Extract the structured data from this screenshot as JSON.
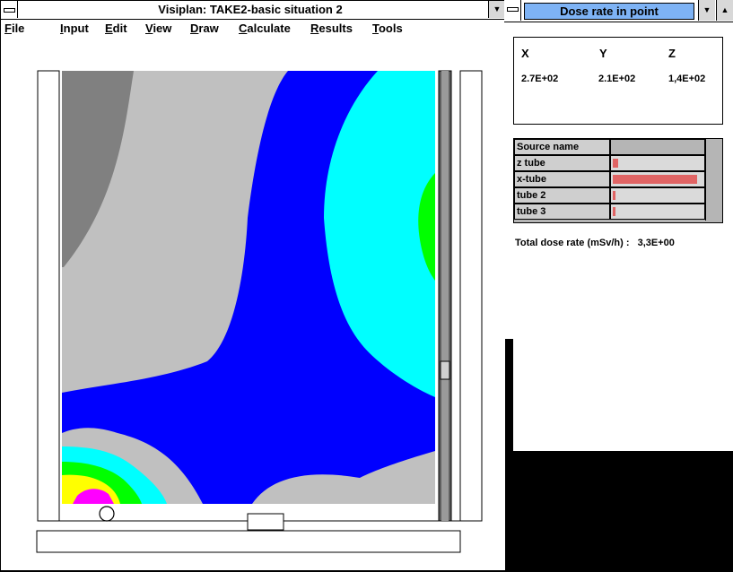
{
  "main_window": {
    "title": "Visiplan: TAKE2-basic situation 2",
    "menu": [
      "File",
      "Input",
      "Edit",
      "View",
      "Draw",
      "Calculate",
      "Results",
      "Tools"
    ]
  },
  "dose_window": {
    "title": "Dose rate in point",
    "coords": {
      "x_label": "X",
      "y_label": "Y",
      "z_label": "Z",
      "x_value": "2.7E+02",
      "y_value": "2.1E+02",
      "z_value": "1,4E+02"
    },
    "table_header": "Source name",
    "sources": [
      {
        "name": "z tube",
        "level": 0.06
      },
      {
        "name": "x-tube",
        "level": 0.94
      },
      {
        "name": "tube 2",
        "level": 0.02
      },
      {
        "name": "tube 3",
        "level": 0.02
      }
    ],
    "total_label": "Total dose rate (mSv/h) :",
    "total_value": "3,3E+00"
  },
  "colors": {
    "contour_dark_gray": "#808080",
    "contour_light_gray": "#c0c0c0",
    "contour_blue": "#0000ff",
    "contour_cyan": "#00ffff",
    "contour_green": "#00ff00",
    "contour_yellow": "#ffff00",
    "contour_magenta": "#ff00ff",
    "bar_color": "#e06464",
    "dose_title_bg": "#7eb3f5"
  }
}
